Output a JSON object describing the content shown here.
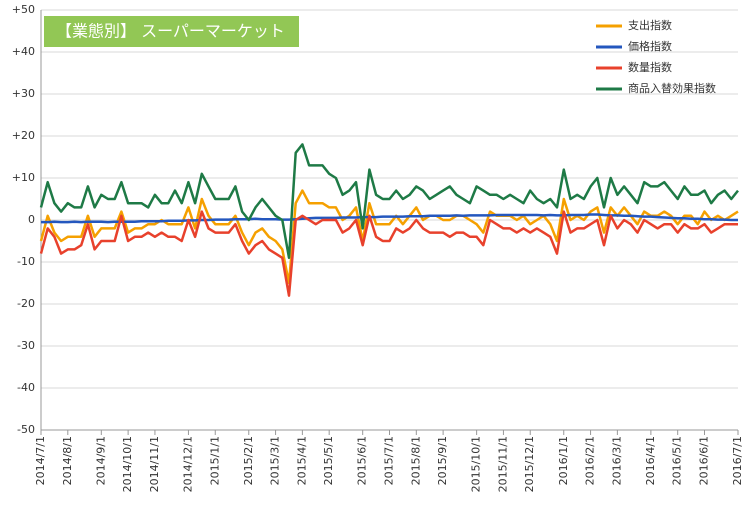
{
  "chart_data": {
    "type": "line",
    "title": "【業態別】 スーパーマーケット",
    "title_color": "#92c755",
    "categories": [
      "2014/7/1",
      null,
      null,
      null,
      "2014/8/1",
      null,
      null,
      null,
      null,
      "2014/9/1",
      null,
      null,
      null,
      "2014/10/1",
      null,
      null,
      null,
      "2014/11/1",
      null,
      null,
      null,
      null,
      "2014/12/1",
      null,
      null,
      null,
      "2015/1/1",
      null,
      null,
      null,
      null,
      "2015/2/1",
      null,
      null,
      null,
      "2015/3/1",
      null,
      null,
      null,
      "2015/4/1",
      null,
      null,
      null,
      "2015/5/1",
      null,
      null,
      null,
      null,
      "2015/6/1",
      null,
      null,
      null,
      "2015/7/1",
      null,
      null,
      null,
      "2015/8/1",
      null,
      null,
      null,
      "2015/9/1",
      null,
      null,
      null,
      null,
      "2015/10/1",
      null,
      null,
      null,
      "2015/11/1",
      null,
      null,
      null,
      "2015/12/1",
      null,
      null,
      null,
      null,
      "2016/1/1",
      null,
      null,
      null,
      "2016/2/1",
      null,
      null,
      null,
      "2016/3/1",
      null,
      null,
      null,
      null,
      "2016/4/1",
      null,
      null,
      null,
      "2016/5/1",
      null,
      null,
      null,
      "2016/6/1",
      null,
      null,
      null,
      null,
      "2016/7/1"
    ],
    "series": [
      {
        "name": "支出指数",
        "color": "#f5a000",
        "values": [
          -5,
          1,
          -3,
          -5,
          -4,
          -4,
          -4,
          1,
          -4,
          -2,
          -2,
          -2,
          2,
          -3,
          -2,
          -2,
          -1,
          -1,
          0,
          -1,
          -1,
          -1,
          3,
          -2,
          5,
          1,
          -1,
          -1,
          -1,
          1,
          -3,
          -6,
          -3,
          -2,
          -4,
          -5,
          -7,
          -15,
          4,
          7,
          4,
          4,
          4,
          3,
          3,
          0,
          1,
          3,
          -5,
          4,
          -1,
          -1,
          -1,
          1,
          -1,
          1,
          3,
          0,
          1,
          1,
          0,
          0,
          1,
          1,
          0,
          -1,
          -3,
          2,
          1,
          1,
          1,
          0,
          1,
          -1,
          0,
          1,
          -1,
          -5,
          5,
          0,
          1,
          0,
          2,
          3,
          -3,
          3,
          1,
          3,
          1,
          -1,
          2,
          1,
          1,
          2,
          1,
          -1,
          1,
          1,
          -1,
          2,
          0,
          1,
          0,
          1,
          2
        ]
      },
      {
        "name": "価格指数",
        "color": "#2457be",
        "values": [
          -0.5,
          -0.5,
          -0.4,
          -0.5,
          -0.5,
          -0.4,
          -0.5,
          -0.4,
          -0.4,
          -0.4,
          -0.5,
          -0.4,
          -0.4,
          -0.4,
          -0.4,
          -0.3,
          -0.3,
          -0.3,
          -0.3,
          -0.2,
          -0.2,
          -0.2,
          -0.1,
          -0.1,
          0,
          0,
          0.1,
          0.1,
          0.1,
          0.2,
          0.2,
          0.2,
          0.3,
          0.2,
          0.2,
          0.2,
          0.1,
          0.1,
          0.2,
          0.3,
          0.4,
          0.5,
          0.5,
          0.5,
          0.5,
          0.6,
          0.6,
          0.6,
          0.7,
          0.7,
          0.7,
          0.8,
          0.8,
          0.8,
          0.8,
          0.9,
          0.9,
          0.9,
          1,
          1,
          1,
          1,
          1.1,
          1,
          1.1,
          1.1,
          1.1,
          1.1,
          1.2,
          1.2,
          1.2,
          1.2,
          1.2,
          1.2,
          1.2,
          1.1,
          1.2,
          1.1,
          1.1,
          1.2,
          1.2,
          1.2,
          1.3,
          1.3,
          1.2,
          1.1,
          1.1,
          1,
          1,
          0.9,
          0.8,
          0.8,
          0.7,
          0.6,
          0.5,
          0.4,
          0.4,
          0.3,
          0.3,
          0.2,
          0.2,
          0.1,
          0.1,
          0,
          0
        ]
      },
      {
        "name": "数量指数",
        "color": "#e8412c",
        "values": [
          -8,
          -2,
          -4,
          -8,
          -7,
          -7,
          -6,
          -1,
          -7,
          -5,
          -5,
          -5,
          1,
          -5,
          -4,
          -4,
          -3,
          -4,
          -3,
          -4,
          -4,
          -5,
          0,
          -4,
          2,
          -2,
          -3,
          -3,
          -3,
          -1,
          -5,
          -8,
          -6,
          -5,
          -7,
          -8,
          -9,
          -18,
          0,
          1,
          0,
          -1,
          0,
          0,
          0,
          -3,
          -2,
          0,
          -6,
          1,
          -4,
          -5,
          -5,
          -2,
          -3,
          -2,
          0,
          -2,
          -3,
          -3,
          -3,
          -4,
          -3,
          -3,
          -4,
          -4,
          -6,
          0,
          -1,
          -2,
          -2,
          -3,
          -2,
          -3,
          -2,
          -3,
          -4,
          -8,
          2,
          -3,
          -2,
          -2,
          -1,
          0,
          -6,
          1,
          -2,
          0,
          -1,
          -3,
          0,
          -1,
          -2,
          -1,
          -1,
          -3,
          -1,
          -2,
          -2,
          -1,
          -3,
          -2,
          -1,
          -1,
          -1
        ]
      },
      {
        "name": "商品入替効果指数",
        "color": "#1e7a46",
        "values": [
          3,
          9,
          4,
          2,
          4,
          3,
          3,
          8,
          3,
          6,
          5,
          5,
          9,
          4,
          4,
          4,
          3,
          6,
          4,
          4,
          7,
          4,
          9,
          4,
          11,
          8,
          5,
          5,
          5,
          8,
          2,
          0,
          3,
          5,
          3,
          1,
          0,
          -9,
          16,
          18,
          13,
          13,
          13,
          11,
          10,
          6,
          7,
          9,
          -2,
          12,
          6,
          5,
          5,
          7,
          5,
          6,
          8,
          7,
          5,
          6,
          7,
          8,
          6,
          5,
          4,
          8,
          7,
          6,
          6,
          5,
          6,
          5,
          4,
          7,
          5,
          4,
          5,
          3,
          12,
          5,
          6,
          5,
          8,
          10,
          3,
          10,
          6,
          8,
          6,
          4,
          9,
          8,
          8,
          9,
          7,
          5,
          8,
          6,
          6,
          7,
          4,
          6,
          7,
          5,
          7
        ]
      }
    ],
    "ylim": [
      -50,
      50
    ],
    "yticks": [
      {
        "value": 50,
        "label": "+50"
      },
      {
        "value": 40,
        "label": "+40"
      },
      {
        "value": 30,
        "label": "+30"
      },
      {
        "value": 20,
        "label": "+20"
      },
      {
        "value": 10,
        "label": "+10"
      },
      0,
      -10,
      -20,
      -30,
      -40,
      -50
    ],
    "grid": true,
    "legend": "upper right"
  }
}
